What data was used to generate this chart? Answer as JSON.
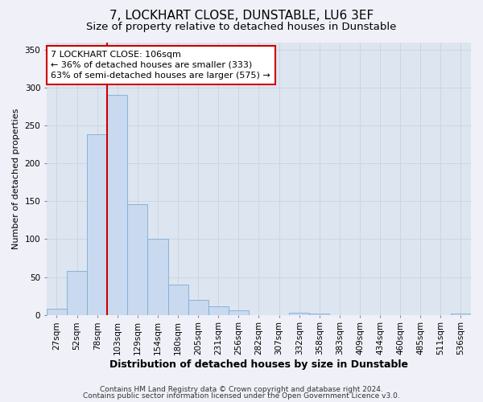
{
  "title": "7, LOCKHART CLOSE, DUNSTABLE, LU6 3EF",
  "subtitle": "Size of property relative to detached houses in Dunstable",
  "xlabel": "Distribution of detached houses by size in Dunstable",
  "ylabel": "Number of detached properties",
  "bar_labels": [
    "27sqm",
    "52sqm",
    "78sqm",
    "103sqm",
    "129sqm",
    "154sqm",
    "180sqm",
    "205sqm",
    "231sqm",
    "256sqm",
    "282sqm",
    "307sqm",
    "332sqm",
    "358sqm",
    "383sqm",
    "409sqm",
    "434sqm",
    "460sqm",
    "485sqm",
    "511sqm",
    "536sqm"
  ],
  "bar_values": [
    8,
    58,
    238,
    291,
    146,
    101,
    40,
    20,
    11,
    6,
    0,
    0,
    3,
    2,
    0,
    0,
    0,
    0,
    0,
    0,
    2
  ],
  "bar_color": "#c9d9ef",
  "bar_edge_color": "#7bafd4",
  "vline_bar_index": 3,
  "vline_color": "#cc0000",
  "annotation_text": "7 LOCKHART CLOSE: 106sqm\n← 36% of detached houses are smaller (333)\n63% of semi-detached houses are larger (575) →",
  "annotation_box_color": "#ffffff",
  "annotation_box_edge": "#cc0000",
  "ylim": [
    0,
    360
  ],
  "yticks": [
    0,
    50,
    100,
    150,
    200,
    250,
    300,
    350
  ],
  "grid_color": "#cdd5e4",
  "bg_color": "#dde5f0",
  "fig_color": "#f0f0f8",
  "footer_line1": "Contains HM Land Registry data © Crown copyright and database right 2024.",
  "footer_line2": "Contains public sector information licensed under the Open Government Licence v3.0.",
  "title_fontsize": 11,
  "subtitle_fontsize": 9.5,
  "xlabel_fontsize": 9,
  "ylabel_fontsize": 8,
  "tick_fontsize": 7.5,
  "footer_fontsize": 6.5,
  "annotation_fontsize": 8
}
